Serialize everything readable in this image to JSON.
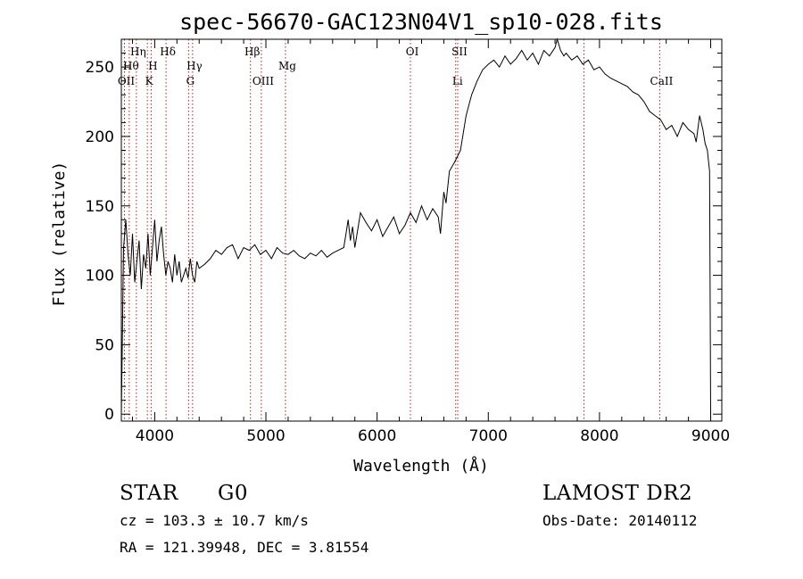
{
  "chart_data": {
    "type": "line",
    "title": "spec-56670-GAC123N04V1_sp10-028.fits",
    "xlabel": "Wavelength (Å)",
    "ylabel": "Flux (relative)",
    "xlim": [
      3700,
      9100
    ],
    "ylim": [
      -5,
      270
    ],
    "xticks": [
      4000,
      5000,
      6000,
      7000,
      8000,
      9000
    ],
    "yticks": [
      0,
      50,
      100,
      150,
      200,
      250
    ],
    "grid": false,
    "series": [
      {
        "x": [
          3700,
          3720,
          3740,
          3760,
          3780,
          3800,
          3820,
          3840,
          3860,
          3880,
          3900,
          3920,
          3940,
          3960,
          3980,
          4000,
          4020,
          4040,
          4060,
          4080,
          4100,
          4120,
          4140,
          4160,
          4180,
          4200,
          4220,
          4240,
          4260,
          4280,
          4300,
          4320,
          4340,
          4360,
          4380,
          4400,
          4450,
          4500,
          4550,
          4600,
          4650,
          4700,
          4750,
          4800,
          4850,
          4900,
          4950,
          5000,
          5050,
          5100,
          5150,
          5200,
          5250,
          5300,
          5350,
          5400,
          5450,
          5500,
          5550,
          5600,
          5650,
          5700,
          5720,
          5740,
          5760,
          5780,
          5800,
          5850,
          5900,
          5950,
          6000,
          6050,
          6100,
          6150,
          6200,
          6250,
          6300,
          6350,
          6400,
          6450,
          6500,
          6550,
          6570,
          6600,
          6620,
          6650,
          6700,
          6750,
          6800,
          6850,
          6900,
          6950,
          7000,
          7050,
          7100,
          7150,
          7200,
          7250,
          7300,
          7350,
          7400,
          7450,
          7500,
          7550,
          7600,
          7620,
          7650,
          7680,
          7700,
          7750,
          7800,
          7850,
          7900,
          7950,
          8000,
          8050,
          8100,
          8150,
          8200,
          8250,
          8300,
          8350,
          8400,
          8450,
          8500,
          8550,
          8600,
          8650,
          8700,
          8750,
          8800,
          8850,
          8870,
          8900,
          8930,
          8950,
          8970,
          8990,
          9000
        ],
        "y": [
          0,
          120,
          140,
          115,
          100,
          130,
          95,
          110,
          125,
          90,
          115,
          105,
          130,
          100,
          120,
          140,
          110,
          125,
          135,
          115,
          100,
          110,
          105,
          95,
          115,
          100,
          110,
          95,
          100,
          105,
          98,
          112,
          100,
          95,
          110,
          105,
          108,
          112,
          118,
          115,
          120,
          122,
          112,
          120,
          118,
          122,
          115,
          118,
          112,
          120,
          116,
          115,
          118,
          114,
          112,
          116,
          114,
          118,
          113,
          116,
          118,
          120,
          130,
          140,
          125,
          135,
          120,
          145,
          138,
          132,
          140,
          128,
          135,
          142,
          130,
          136,
          145,
          138,
          150,
          140,
          148,
          142,
          130,
          160,
          152,
          175,
          182,
          190,
          215,
          230,
          240,
          248,
          252,
          255,
          250,
          258,
          252,
          256,
          262,
          255,
          260,
          252,
          262,
          258,
          264,
          270,
          262,
          258,
          260,
          255,
          258,
          252,
          255,
          248,
          250,
          245,
          242,
          240,
          238,
          236,
          232,
          230,
          225,
          218,
          215,
          212,
          205,
          208,
          200,
          210,
          205,
          202,
          196,
          215,
          205,
          195,
          190,
          175,
          0
        ]
      }
    ],
    "spectral_lines": [
      {
        "wavelength": 3728,
        "label": "OII",
        "row": 3
      },
      {
        "wavelength": 3771,
        "label": "Hθ",
        "row": 2
      },
      {
        "wavelength": 3835,
        "label": "Hη",
        "row": 1
      },
      {
        "wavelength": 3934,
        "label": "K",
        "row": 3
      },
      {
        "wavelength": 3968,
        "label": "H",
        "row": 2
      },
      {
        "wavelength": 4102,
        "label": "Hδ",
        "row": 1
      },
      {
        "wavelength": 4305,
        "label": "G",
        "row": 3
      },
      {
        "wavelength": 4341,
        "label": "Hγ",
        "row": 2
      },
      {
        "wavelength": 4861,
        "label": "Hβ",
        "row": 1
      },
      {
        "wavelength": 4959,
        "label": "OIII",
        "row": 3
      },
      {
        "wavelength": 5176,
        "label": "Mg",
        "row": 2
      },
      {
        "wavelength": 6300,
        "label": "OI",
        "row": 1
      },
      {
        "wavelength": 6707,
        "label": "Li",
        "row": 3
      },
      {
        "wavelength": 6725,
        "label": "SII",
        "row": 1
      },
      {
        "wavelength": 7860,
        "label": "",
        "row": 0
      },
      {
        "wavelength": 8542,
        "label": "CaII",
        "row": 3
      }
    ]
  },
  "info": {
    "object_type": "STAR",
    "subclass": "G0",
    "survey": "LAMOST DR2",
    "cz": "cz = 103.3 ± 10.7 km/s",
    "obs_date": "Obs-Date: 20140112",
    "coords": "RA = 121.39948, DEC =   3.81554"
  }
}
